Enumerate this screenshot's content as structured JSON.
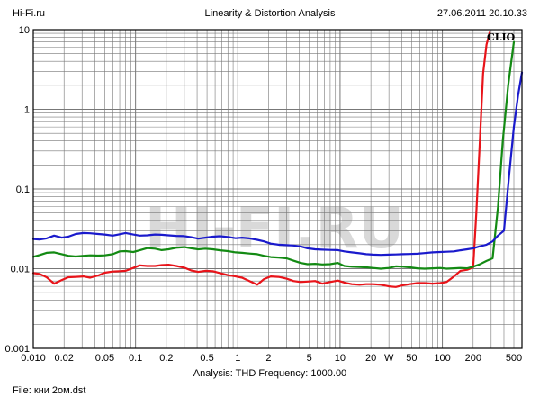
{
  "header": {
    "site": "Hi-Fi.ru",
    "title": "Linearity & Distortion Analysis",
    "datetime": "27.06.2011 20.10.33"
  },
  "footer": {
    "analysis": "Analysis: THD   Frequency: 1000.00",
    "file": "File: кни 2ом.dst"
  },
  "logo": "CLIO",
  "watermark": "HI-FI.RU",
  "colors": {
    "red": "#e8141a",
    "green": "#138a13",
    "blue": "#1a1acc",
    "grid": "#777777",
    "background": "#ffffff"
  },
  "chart_data": {
    "type": "line",
    "x_scale": "log",
    "y_scale": "log",
    "xlim": [
      0.01,
      600
    ],
    "ylim": [
      0.001,
      10
    ],
    "grid": true,
    "xticks": [
      {
        "v": 0.01,
        "label": "0.010"
      },
      {
        "v": 0.02,
        "label": "0.02"
      },
      {
        "v": 0.05,
        "label": "0.05"
      },
      {
        "v": 0.1,
        "label": "0.1"
      },
      {
        "v": 0.2,
        "label": "0.2"
      },
      {
        "v": 0.5,
        "label": "0.5"
      },
      {
        "v": 1,
        "label": "1"
      },
      {
        "v": 2,
        "label": "2"
      },
      {
        "v": 5,
        "label": "5"
      },
      {
        "v": 10,
        "label": "10"
      },
      {
        "v": 20,
        "label": "20"
      },
      {
        "v": 30,
        "label": "W"
      },
      {
        "v": 50,
        "label": "50"
      },
      {
        "v": 100,
        "label": "100"
      },
      {
        "v": 200,
        "label": "200"
      },
      {
        "v": 500,
        "label": "500"
      }
    ],
    "yticks": [
      {
        "v": 10,
        "label": "10"
      },
      {
        "v": 1,
        "label": "1"
      },
      {
        "v": 0.1,
        "label": "0.1"
      },
      {
        "v": 0.01,
        "label": "0.01"
      },
      {
        "v": 0.001,
        "label": "0.001"
      }
    ],
    "series": [
      {
        "color": "#e8141a",
        "x": [
          0.01,
          0.0115,
          0.0135,
          0.016,
          0.019,
          0.022,
          0.026,
          0.031,
          0.036,
          0.043,
          0.05,
          0.06,
          0.07,
          0.08,
          0.095,
          0.11,
          0.13,
          0.155,
          0.18,
          0.21,
          0.25,
          0.3,
          0.35,
          0.41,
          0.48,
          0.57,
          0.67,
          0.8,
          0.95,
          1.1,
          1.3,
          1.55,
          1.8,
          2.1,
          2.5,
          3,
          3.5,
          4.1,
          4.8,
          5.7,
          6.7,
          8,
          9.5,
          11,
          13,
          15.5,
          18,
          21,
          25,
          30,
          35,
          41,
          48,
          57,
          67,
          80,
          95,
          110,
          130,
          150,
          175,
          200,
          215,
          230,
          250,
          270,
          290
        ],
        "y": [
          0.0088,
          0.0086,
          0.0078,
          0.0065,
          0.0072,
          0.0078,
          0.0079,
          0.008,
          0.0077,
          0.0082,
          0.0089,
          0.0092,
          0.0093,
          0.0094,
          0.0102,
          0.011,
          0.0108,
          0.0108,
          0.0111,
          0.0112,
          0.0108,
          0.0103,
          0.0095,
          0.0091,
          0.0094,
          0.0093,
          0.0088,
          0.0083,
          0.008,
          0.0077,
          0.007,
          0.0063,
          0.0074,
          0.008,
          0.0079,
          0.0075,
          0.007,
          0.0068,
          0.0069,
          0.007,
          0.0065,
          0.0068,
          0.0071,
          0.0067,
          0.0064,
          0.0063,
          0.0064,
          0.0064,
          0.0063,
          0.006,
          0.0059,
          0.0062,
          0.0064,
          0.0066,
          0.0066,
          0.0065,
          0.0066,
          0.0068,
          0.008,
          0.0094,
          0.0097,
          0.0104,
          0.05,
          0.3,
          2.8,
          6.5,
          9.2
        ]
      },
      {
        "color": "#138a13",
        "x": [
          0.01,
          0.0115,
          0.0135,
          0.016,
          0.019,
          0.022,
          0.026,
          0.031,
          0.036,
          0.043,
          0.05,
          0.06,
          0.07,
          0.08,
          0.095,
          0.11,
          0.13,
          0.155,
          0.18,
          0.21,
          0.25,
          0.3,
          0.35,
          0.41,
          0.48,
          0.57,
          0.67,
          0.8,
          0.95,
          1.1,
          1.3,
          1.55,
          1.8,
          2.1,
          2.5,
          3,
          3.5,
          4.1,
          4.8,
          5.7,
          6.7,
          8,
          9.5,
          11,
          13,
          15.5,
          18,
          21,
          25,
          30,
          35,
          41,
          48,
          57,
          67,
          80,
          95,
          110,
          130,
          150,
          175,
          200,
          230,
          270,
          310,
          350,
          390,
          440,
          500
        ],
        "y": [
          0.0141,
          0.0148,
          0.0158,
          0.016,
          0.0152,
          0.0145,
          0.0142,
          0.0145,
          0.0147,
          0.0146,
          0.0147,
          0.0152,
          0.0165,
          0.0166,
          0.0162,
          0.017,
          0.0181,
          0.0178,
          0.0171,
          0.0175,
          0.0183,
          0.0186,
          0.018,
          0.0175,
          0.0178,
          0.0175,
          0.017,
          0.0166,
          0.016,
          0.0158,
          0.0155,
          0.0152,
          0.0145,
          0.014,
          0.0138,
          0.0135,
          0.0126,
          0.0118,
          0.0114,
          0.0115,
          0.0113,
          0.0114,
          0.0118,
          0.0108,
          0.0106,
          0.0105,
          0.0104,
          0.0102,
          0.01,
          0.0102,
          0.0107,
          0.0106,
          0.0104,
          0.0101,
          0.01,
          0.0101,
          0.0102,
          0.01,
          0.0101,
          0.0102,
          0.0101,
          0.0106,
          0.0113,
          0.0125,
          0.0135,
          0.06,
          0.4,
          2.0,
          7.0
        ]
      },
      {
        "color": "#1a1acc",
        "x": [
          0.01,
          0.0115,
          0.0135,
          0.016,
          0.019,
          0.022,
          0.026,
          0.031,
          0.036,
          0.043,
          0.05,
          0.06,
          0.07,
          0.08,
          0.095,
          0.11,
          0.13,
          0.155,
          0.18,
          0.21,
          0.25,
          0.3,
          0.35,
          0.41,
          0.48,
          0.57,
          0.67,
          0.8,
          0.95,
          1.1,
          1.3,
          1.55,
          1.8,
          2.1,
          2.5,
          3,
          3.5,
          4.1,
          4.8,
          5.7,
          6.7,
          8,
          9.5,
          11,
          13,
          15.5,
          18,
          21,
          25,
          30,
          35,
          41,
          48,
          57,
          67,
          80,
          95,
          110,
          130,
          150,
          175,
          200,
          230,
          270,
          310,
          350,
          400,
          450,
          500,
          550,
          600
        ],
        "y": [
          0.0235,
          0.0232,
          0.024,
          0.026,
          0.0245,
          0.0252,
          0.0272,
          0.028,
          0.0278,
          0.0272,
          0.0268,
          0.026,
          0.027,
          0.028,
          0.0268,
          0.026,
          0.0262,
          0.0268,
          0.0266,
          0.0262,
          0.0258,
          0.0256,
          0.0248,
          0.0238,
          0.0245,
          0.0252,
          0.0255,
          0.025,
          0.0241,
          0.0245,
          0.024,
          0.023,
          0.022,
          0.0206,
          0.02,
          0.0197,
          0.0195,
          0.019,
          0.018,
          0.0175,
          0.0173,
          0.0172,
          0.0171,
          0.0165,
          0.016,
          0.0156,
          0.0152,
          0.015,
          0.0149,
          0.015,
          0.0151,
          0.0152,
          0.0153,
          0.0154,
          0.0157,
          0.016,
          0.0162,
          0.0163,
          0.0165,
          0.017,
          0.0175,
          0.018,
          0.019,
          0.02,
          0.022,
          0.026,
          0.03,
          0.15,
          0.6,
          1.5,
          2.9
        ]
      }
    ]
  }
}
